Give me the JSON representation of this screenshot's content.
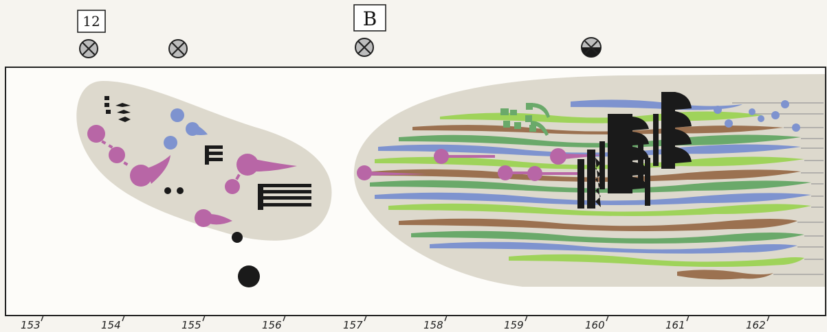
{
  "markers": {
    "rehearsal_12": "12",
    "rehearsal_b": "B"
  },
  "timeline": {
    "ticks": [
      "153",
      "154",
      "155",
      "156",
      "157",
      "158",
      "159",
      "160",
      "161",
      "162"
    ]
  },
  "colors": {
    "background": "#f6f4ef",
    "blob": "#ddd9cd",
    "magenta": "#b866a6",
    "blue": "#7e93cf",
    "green_light": "#9fd35a",
    "green_dark": "#6aa96a",
    "brown": "#9b7150",
    "black": "#1a1a1a",
    "frame": "#222222"
  },
  "icons": {
    "cue_symbol": "circle-x-icon",
    "cue_symbol_half": "circle-half-icon"
  }
}
